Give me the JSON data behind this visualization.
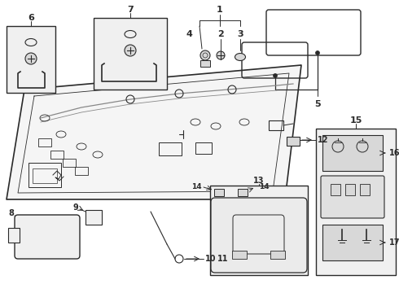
{
  "bg_color": "#ffffff",
  "line_color": "#2a2a2a",
  "gray_fill": "#f0f0f0",
  "gray_mid": "#d8d8d8",
  "gray_dark": "#888888",
  "fig_w": 4.9,
  "fig_h": 3.6,
  "dpi": 100
}
